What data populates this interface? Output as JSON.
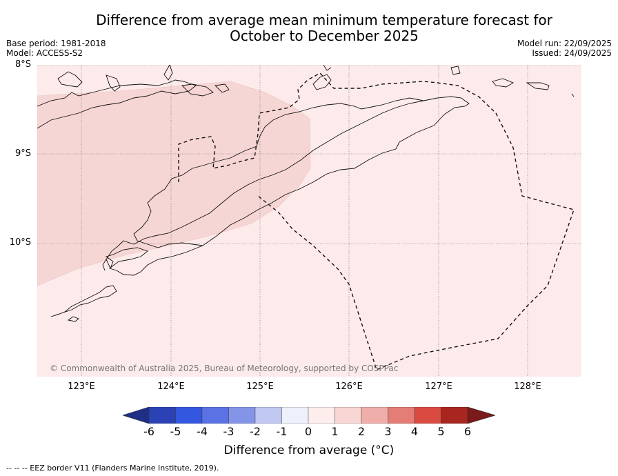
{
  "title_line1": "Difference from average mean minimum temperature forecast for",
  "title_line2": "October to December 2025",
  "base_period": "Base period: 1981-2018",
  "model": "Model: ACCESS-S2",
  "model_run": "Model run: 22/09/2025",
  "issued": "Issued: 24/09/2025",
  "lat_labels": [
    "8°S",
    "9°S",
    "10°S"
  ],
  "lon_labels": [
    "123°E",
    "124°E",
    "125°E",
    "126°E",
    "127°E",
    "128°E"
  ],
  "copyright": "© Commonwealth of Australia 2025, Bureau of Meteorology, supported by COSPPac",
  "colorbar": {
    "ticks": [
      "-6",
      "-5",
      "-4",
      "-3",
      "-2",
      "-1",
      "0",
      "1",
      "2",
      "3",
      "4",
      "5",
      "6"
    ],
    "colors": [
      "#1f2f87",
      "#2a42b5",
      "#3457e0",
      "#5a72e3",
      "#8495e8",
      "#c1c8f2",
      "#eef0fb",
      "#fdeeed",
      "#f7d6d3",
      "#efaea9",
      "#e47d75",
      "#d94b40",
      "#a8261f",
      "#7a1a1a"
    ],
    "label": "Difference from average (°C)"
  },
  "legend_regions": {
    "zero_to_one_color": "#fcebea",
    "one_to_two_color": "#f6d6d4"
  },
  "footer": "--  --  -- EEZ border V11 (Flanders Marine Institute, 2019)."
}
